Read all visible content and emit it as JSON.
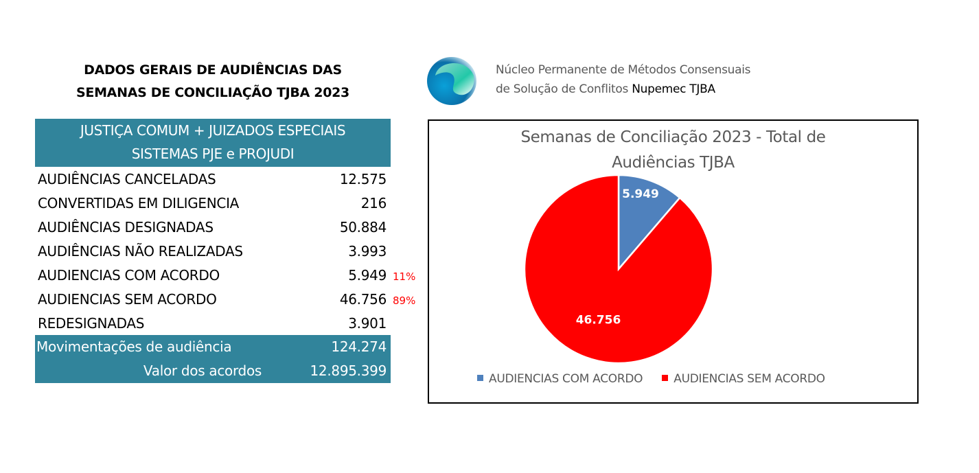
{
  "page_title": [
    "DADOS GERAIS DE AUDIÊNCIAS DAS",
    "SEMANAS DE CONCILIAÇÃO TJBA 2023"
  ],
  "table": {
    "header": [
      "JUSTIÇA COMUM + JUIZADOS ESPECIAIS",
      "SISTEMAS PJE e PROJUDI"
    ],
    "rows": [
      {
        "label": "AUDIÊNCIAS CANCELADAS",
        "value": "12.575",
        "pct": ""
      },
      {
        "label": "CONVERTIDAS EM DILIGENCIA",
        "value": "216",
        "pct": ""
      },
      {
        "label": "AUDIÊNCIAS DESIGNADAS",
        "value": "50.884",
        "pct": ""
      },
      {
        "label": "AUDIÊNCIAS NÃO REALIZADAS",
        "value": "3.993",
        "pct": ""
      },
      {
        "label": "AUDIENCIAS COM ACORDO",
        "value": "5.949",
        "pct": "11%"
      },
      {
        "label": "AUDIENCIAS SEM ACORDO",
        "value": "46.756",
        "pct": "89%"
      },
      {
        "label": "REDESIGNADAS",
        "value": "3.901",
        "pct": ""
      }
    ],
    "totals": [
      {
        "label": "Movimentações de audiência",
        "value": "124.274"
      },
      {
        "label": "Valor dos acordos",
        "value": "12.895.399"
      }
    ],
    "header_color": "#31849b"
  },
  "org": {
    "line1": "Núcleo Permanente de Métodos Consensuais",
    "line2": "de Solução de Conflitos",
    "name": "Nupemec TJBA",
    "logo_icon": "swirl-logo-icon"
  },
  "chart_data": {
    "type": "pie",
    "title": [
      "Semanas de Conciliação 2023 - Total de",
      "Audiências TJBA"
    ],
    "categories": [
      "AUDIENCIAS COM ACORDO",
      "AUDIENCIAS SEM ACORDO"
    ],
    "values": [
      5949,
      46756
    ],
    "data_labels": [
      "5.949",
      "46.756"
    ],
    "colors": [
      "#4f81bd",
      "#ff0000"
    ],
    "legend_position": "bottom",
    "start_angle_deg": 0
  }
}
